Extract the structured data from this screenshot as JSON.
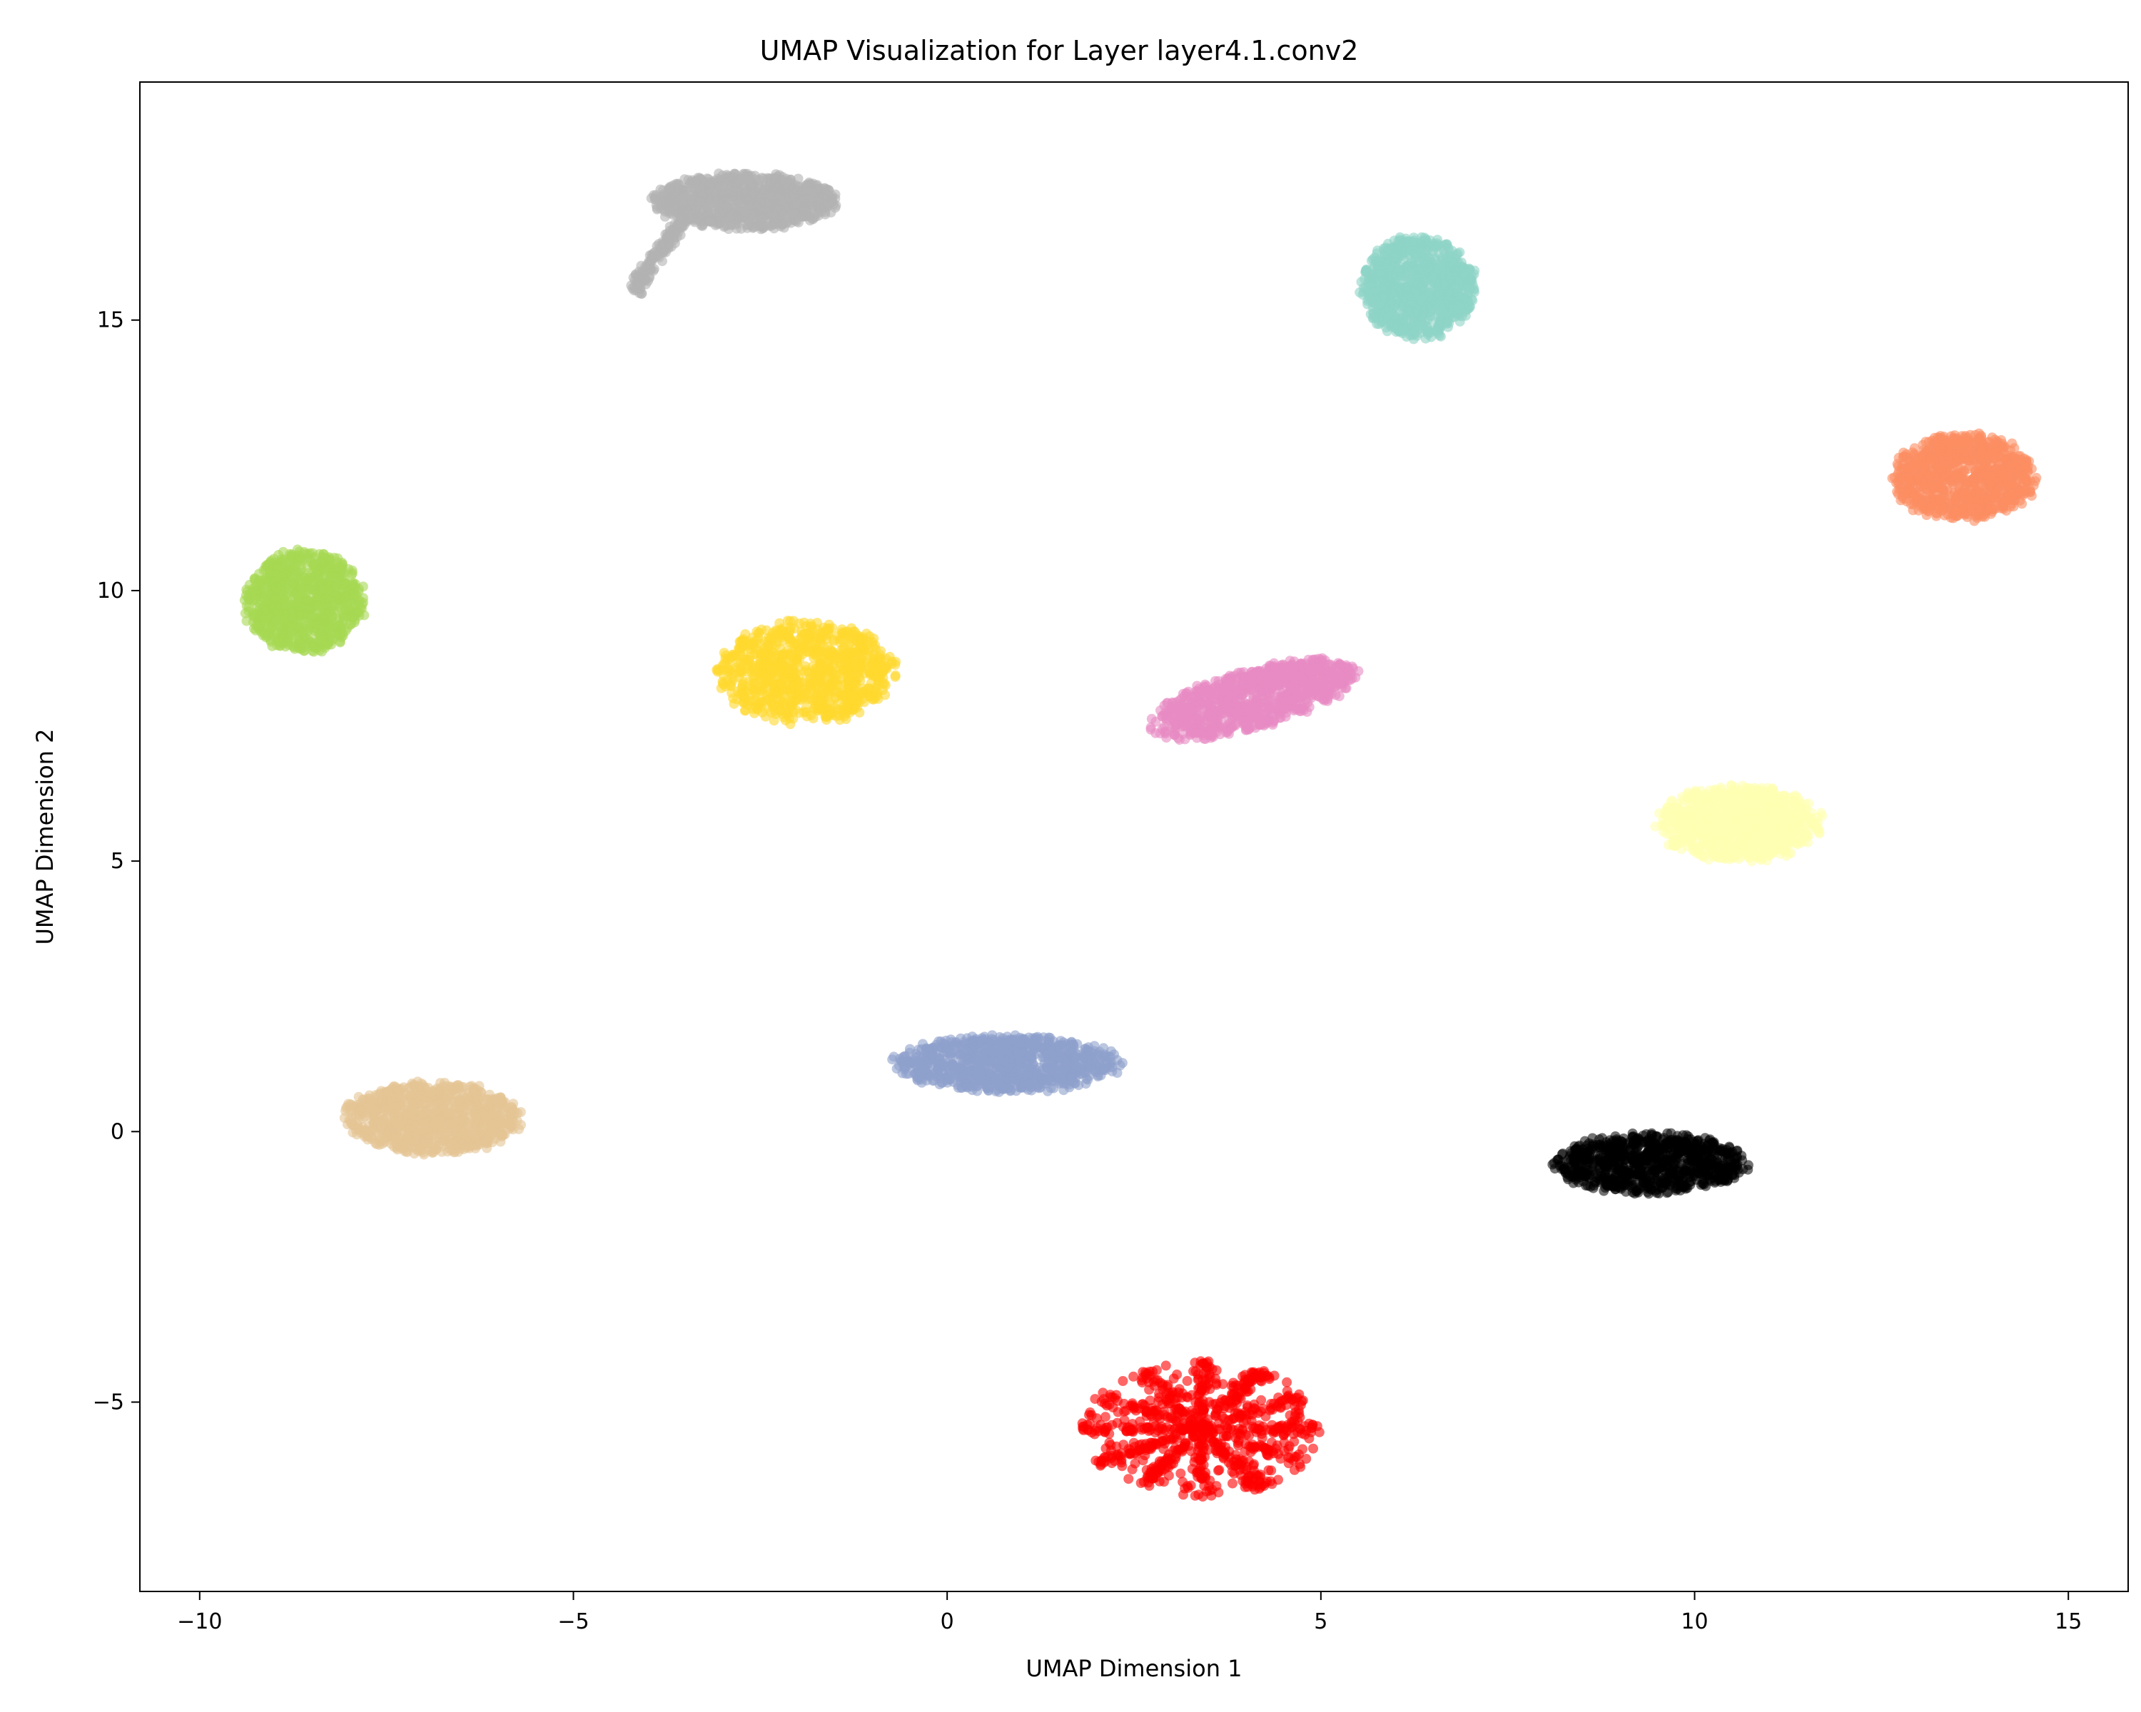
{
  "chart_data": {
    "type": "scatter",
    "title": "UMAP Visualization for Layer layer4.1.conv2",
    "xlabel": "UMAP Dimension 1",
    "ylabel": "UMAP Dimension 2",
    "xlim": [
      -10.8,
      15.8
    ],
    "ylim": [
      -8.5,
      19.4
    ],
    "xticks": [
      -10,
      -5,
      0,
      5,
      10,
      15
    ],
    "yticks": [
      -5,
      0,
      5,
      10,
      15
    ],
    "xtick_labels": [
      "−10",
      "−5",
      "0",
      "5",
      "10",
      "15"
    ],
    "ytick_labels": [
      "−5",
      "0",
      "5",
      "10",
      "15"
    ],
    "grid": false,
    "legend": "none",
    "clusters": [
      {
        "center": [
          -2.7,
          17.2
        ],
        "spread": [
          1.3,
          0.55
        ],
        "color": "#b3b3b3",
        "shape": "tail",
        "tail_to": [
          -4.2,
          15.55
        ],
        "label": "gray"
      },
      {
        "center": [
          6.3,
          15.6
        ],
        "spread": [
          0.8,
          1.0
        ],
        "color": "#8dd3c7",
        "shape": "blob",
        "label": "teal"
      },
      {
        "center": [
          13.6,
          12.1
        ],
        "spread": [
          1.0,
          0.85
        ],
        "color": "#fc8d62",
        "shape": "blob",
        "label": "orange"
      },
      {
        "center": [
          -8.6,
          9.8
        ],
        "spread": [
          0.85,
          1.0
        ],
        "color": "#a6d854",
        "shape": "blob",
        "label": "green"
      },
      {
        "center": [
          -1.9,
          8.5
        ],
        "spread": [
          1.25,
          1.0
        ],
        "color": "#ffd92f",
        "shape": "blob",
        "label": "yellow"
      },
      {
        "center": [
          4.1,
          8.0
        ],
        "spread": [
          1.45,
          0.6
        ],
        "color": "#e78ac3",
        "shape": "tilt",
        "label": "pink"
      },
      {
        "center": [
          10.6,
          5.7
        ],
        "spread": [
          1.15,
          0.75
        ],
        "color": "#ffffb3",
        "shape": "blob",
        "label": "light-yellow"
      },
      {
        "center": [
          0.8,
          1.25
        ],
        "spread": [
          1.6,
          0.55
        ],
        "color": "#8da0cb",
        "shape": "blob",
        "label": "blue"
      },
      {
        "center": [
          -6.9,
          0.25
        ],
        "spread": [
          1.25,
          0.7
        ],
        "color": "#e5c494",
        "shape": "blob",
        "label": "tan"
      },
      {
        "center": [
          9.4,
          -0.6
        ],
        "spread": [
          1.35,
          0.6
        ],
        "color": "#000000",
        "shape": "blob",
        "label": "black"
      },
      {
        "center": [
          3.4,
          -5.5
        ],
        "spread": [
          1.6,
          1.4
        ],
        "color": "#ff0000",
        "shape": "star",
        "label": "red"
      }
    ]
  }
}
